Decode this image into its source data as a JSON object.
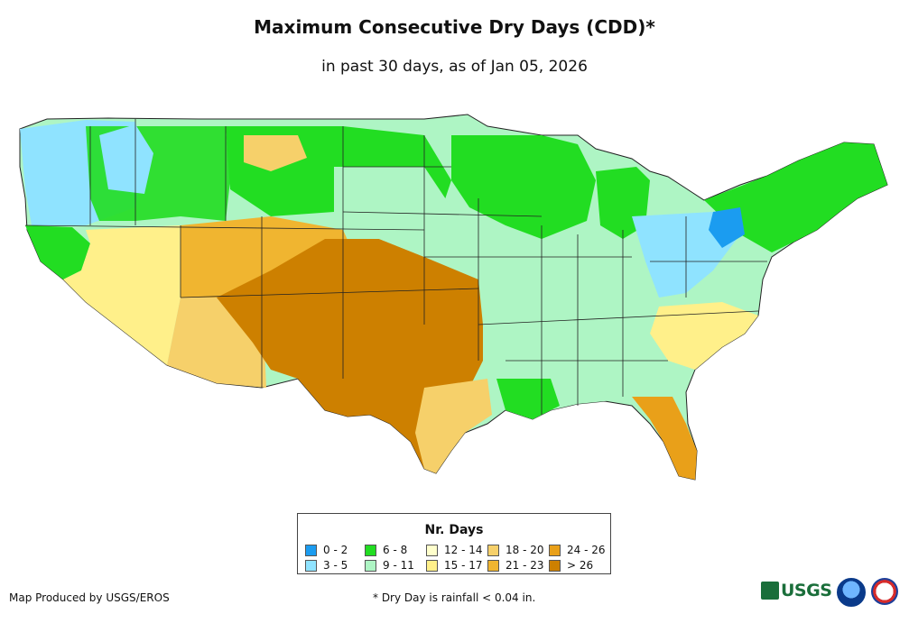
{
  "title": "Maximum Consecutive Dry Days (CDD)*",
  "subtitle": "in past 30 days, as of Jan 05, 2026",
  "legend": {
    "title": "Nr. Days",
    "items": [
      {
        "label": "0 - 2",
        "color": "#1b9cf0"
      },
      {
        "label": "3 - 5",
        "color": "#8fe3ff"
      },
      {
        "label": "6 - 8",
        "color": "#22dd22"
      },
      {
        "label": "9 - 11",
        "color": "#aef5c4"
      },
      {
        "label": "12 - 14",
        "color": "#ffffcc"
      },
      {
        "label": "15 - 17",
        "color": "#fff08a"
      },
      {
        "label": "18 - 20",
        "color": "#f6d06a"
      },
      {
        "label": "21 - 23",
        "color": "#f0b530"
      },
      {
        "label": "24 - 26",
        "color": "#e9a019"
      },
      {
        "label": "> 26",
        "color": "#cd8000"
      }
    ]
  },
  "credit": "Map Produced by USGS/EROS",
  "footnote": "* Dry Day is rainfall < 0.04 in.",
  "logos": {
    "usgs": "USGS",
    "usgs_icon": "usgs-wave-icon",
    "noaa_icon": "noaa-logo-icon",
    "nws_icon": "nws-logo-icon"
  }
}
